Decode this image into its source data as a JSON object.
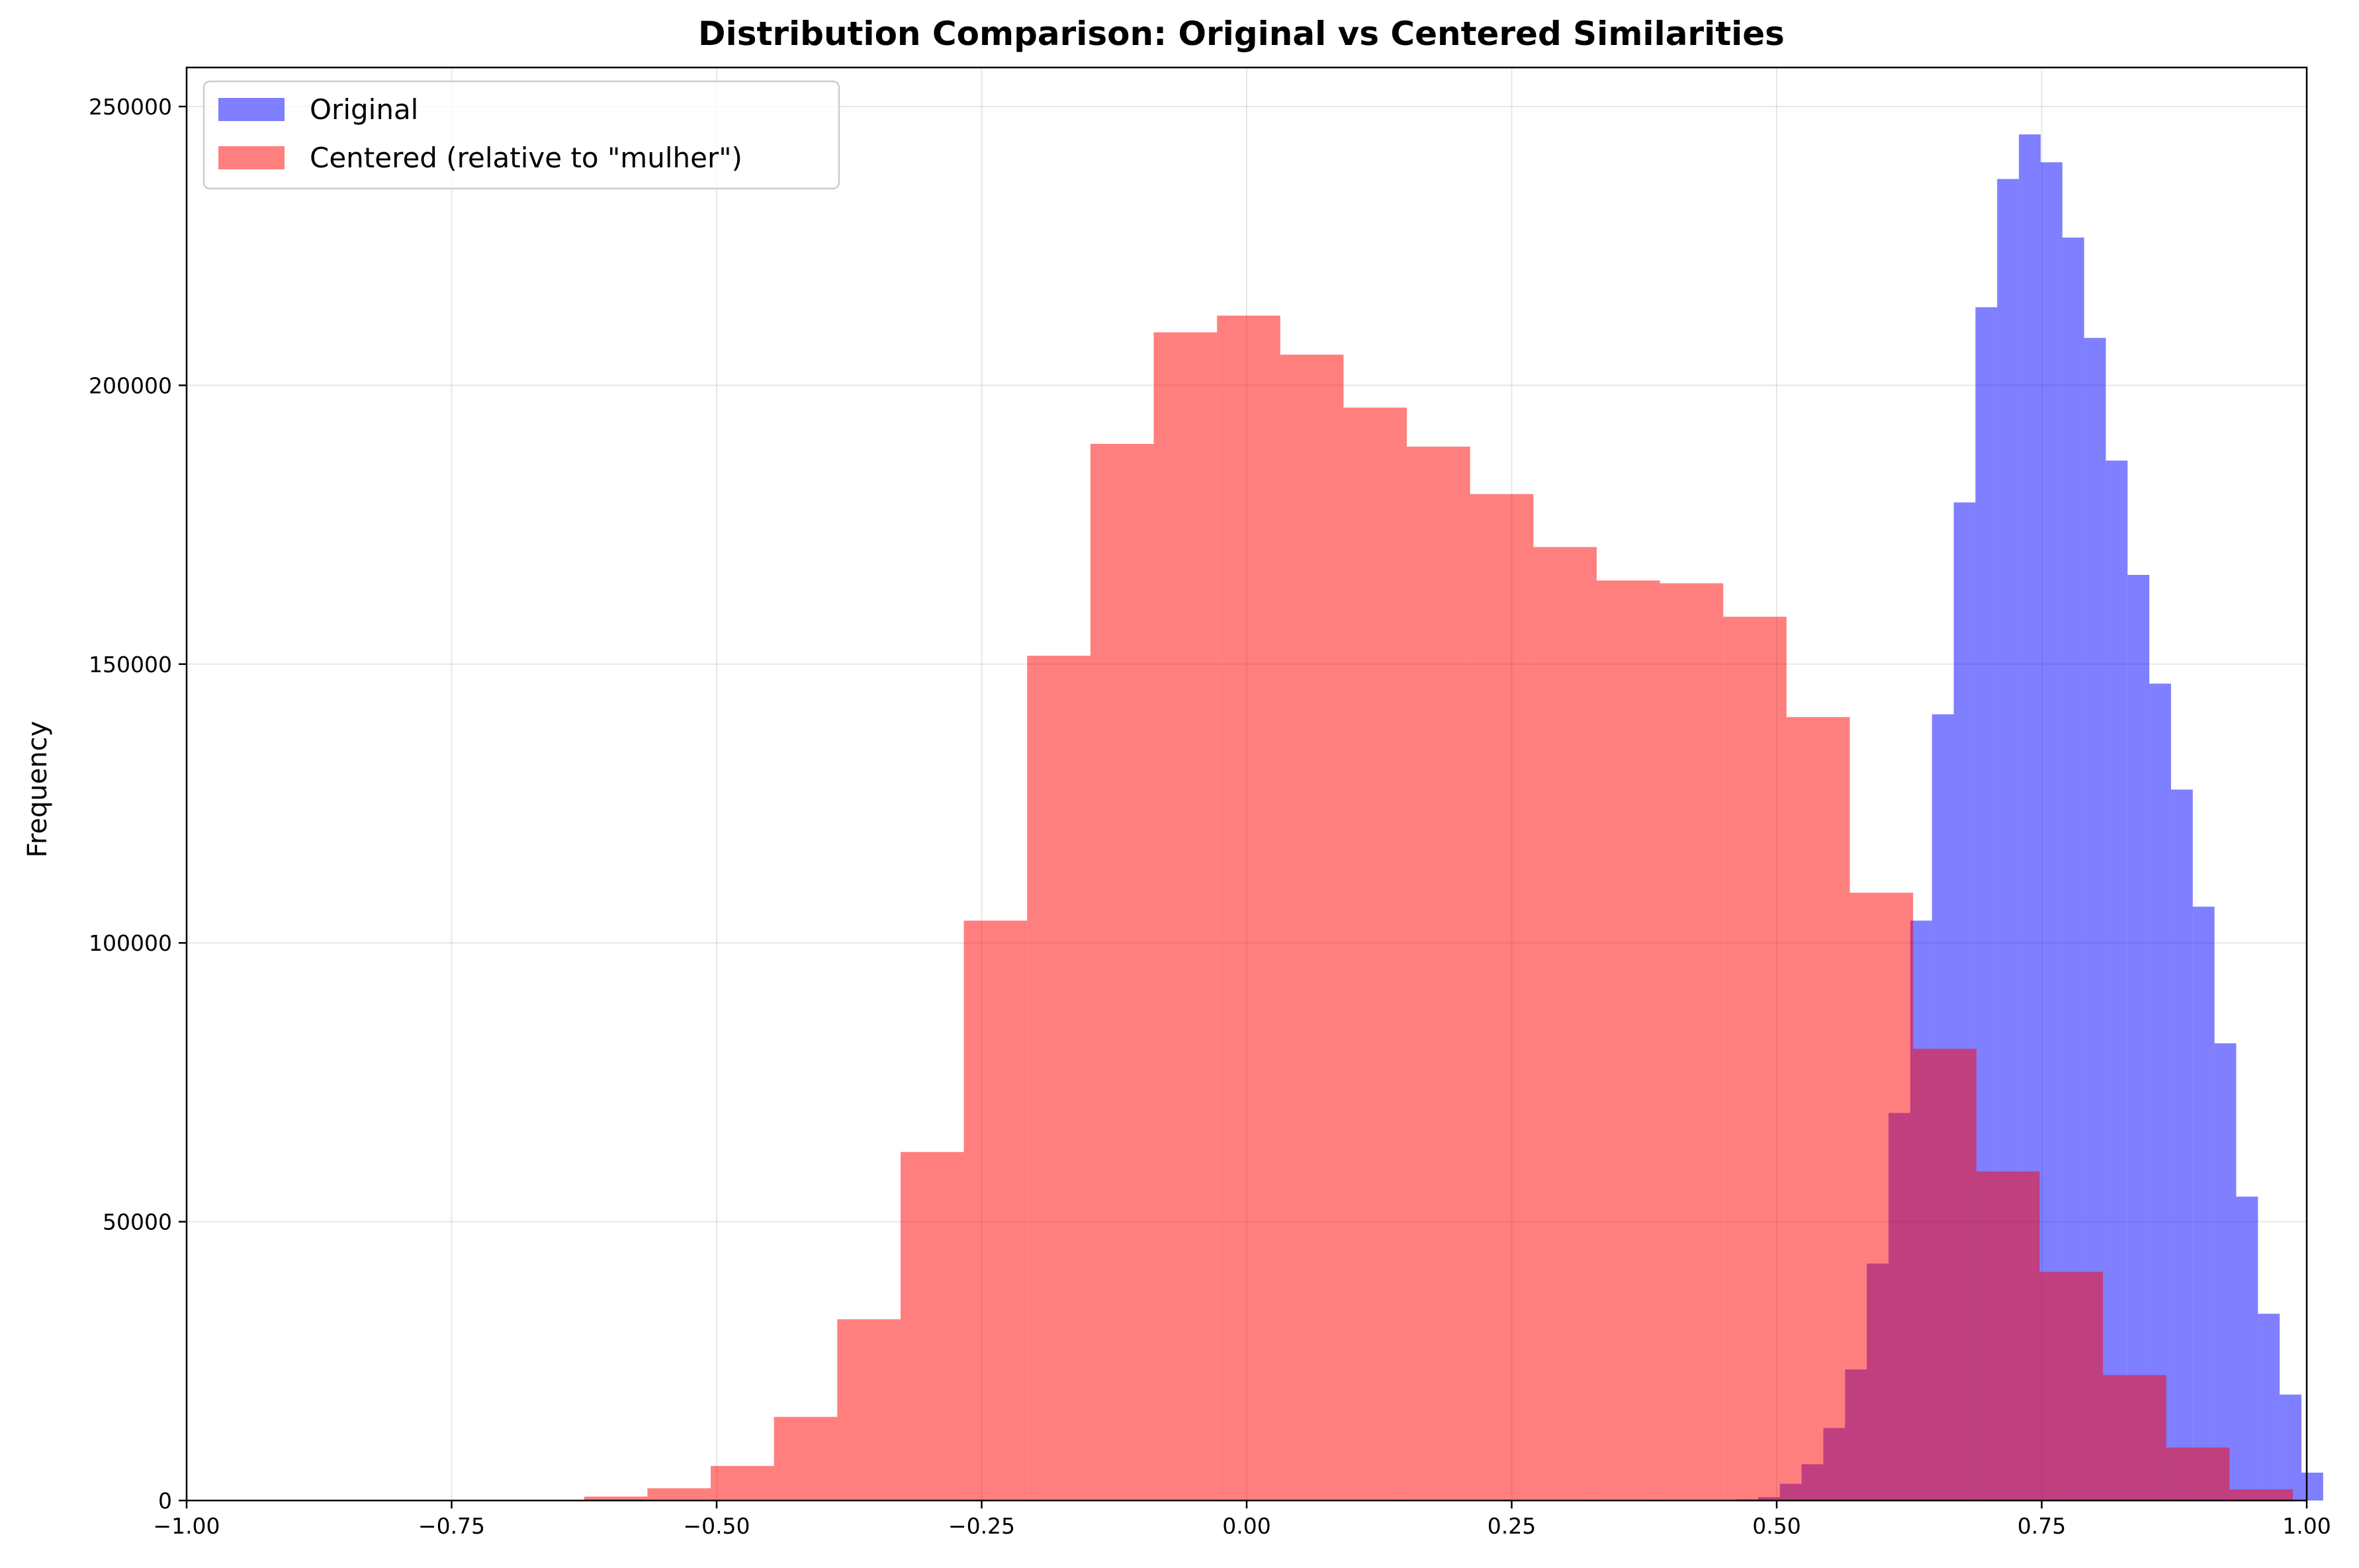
{
  "chart_data": {
    "type": "bar",
    "subtype": "overlaid-histogram",
    "title": "Distribution Comparison: Original vs Centered Similarities",
    "xlabel": "",
    "ylabel": "Frequency",
    "xlim": [
      -1.0,
      1.0
    ],
    "ylim": [
      0,
      257000
    ],
    "xticks": [
      -1.0,
      -0.75,
      -0.5,
      -0.25,
      0.0,
      0.25,
      0.5,
      0.75,
      1.0
    ],
    "xtick_labels": [
      "−1.00",
      "−0.75",
      "−0.50",
      "−0.25",
      "0.00",
      "0.25",
      "0.50",
      "0.75",
      "1.00"
    ],
    "yticks": [
      0,
      50000,
      100000,
      150000,
      200000,
      250000
    ],
    "ytick_labels": [
      "0",
      "50000",
      "100000",
      "150000",
      "200000",
      "250000"
    ],
    "grid": true,
    "legend_position": "top-left",
    "series": [
      {
        "name": "Original",
        "color": "#0000ff",
        "opacity": 0.5,
        "bin_start": 0.462,
        "bin_width": 0.0205,
        "values": [
          200,
          600,
          3000,
          6500,
          13000,
          23500,
          42500,
          69500,
          104000,
          141000,
          179000,
          214000,
          237000,
          245000,
          240000,
          226500,
          208500,
          186500,
          166000,
          146500,
          127500,
          106500,
          82000,
          54500,
          33500,
          19000,
          5000
        ]
      },
      {
        "name": "Centered (relative to \"mulher\")",
        "color": "#ff0000",
        "opacity": 0.5,
        "bin_start": -0.625,
        "bin_width": 0.0597,
        "values": [
          700,
          2200,
          6200,
          15000,
          32500,
          62500,
          104000,
          151500,
          189500,
          209500,
          212500,
          205500,
          196000,
          189000,
          180500,
          171000,
          165000,
          164500,
          158500,
          140500,
          109000,
          81000,
          59000,
          41000,
          22500,
          9500,
          2000
        ]
      }
    ]
  }
}
